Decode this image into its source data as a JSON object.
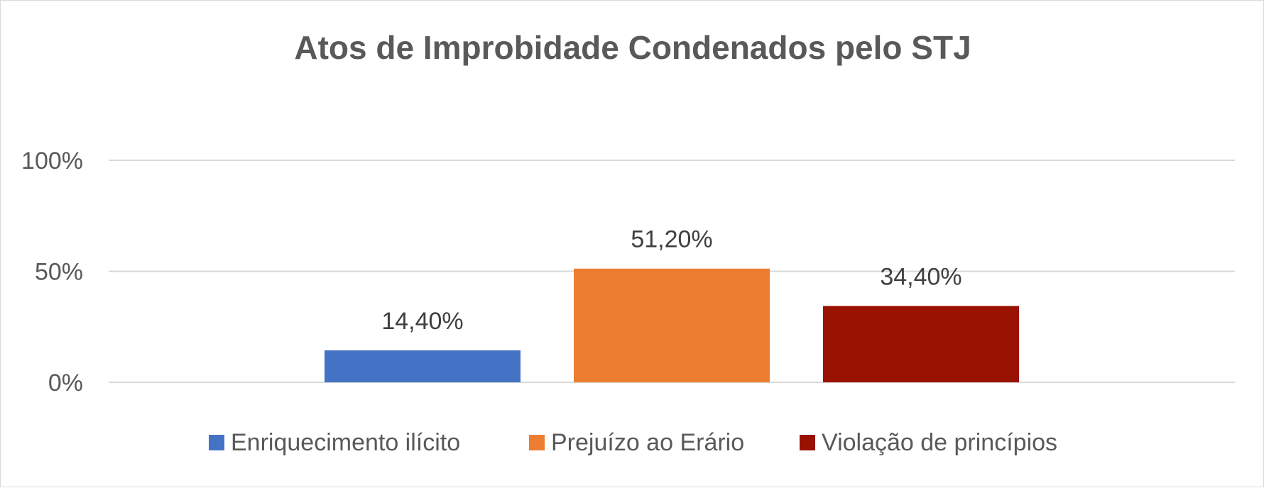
{
  "chart_data": {
    "type": "bar",
    "title": "Atos de Improbidade Condenados pelo STJ",
    "xlabel": "",
    "ylabel": "",
    "ylim": [
      0,
      100
    ],
    "yticks": [
      0,
      50,
      100
    ],
    "ytick_labels": [
      "0%",
      "50%",
      "100%"
    ],
    "grid": true,
    "legend_position": "bottom",
    "series": [
      {
        "name": "Enriquecimento ilícito",
        "value": 14.4,
        "label": "14,40%",
        "color": "#4472C4"
      },
      {
        "name": "Prejuízo ao Erário",
        "value": 51.2,
        "label": "51,20%",
        "color": "#ED7D31"
      },
      {
        "name": "Violação de princípios",
        "value": 34.4,
        "label": "34,40%",
        "color": "#991100"
      }
    ]
  }
}
